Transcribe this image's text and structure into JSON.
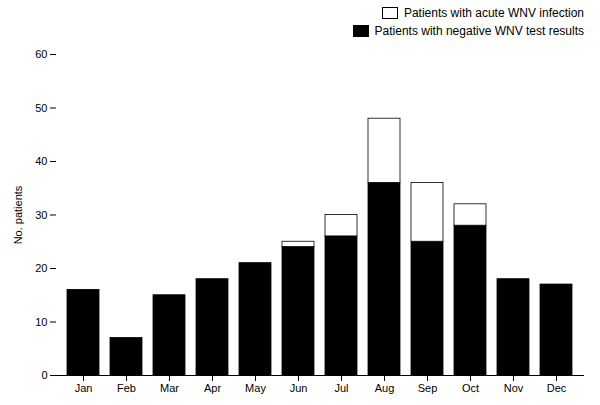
{
  "chart_data": {
    "type": "bar",
    "stacked": true,
    "categories": [
      "Jan",
      "Feb",
      "Mar",
      "Apr",
      "May",
      "Jun",
      "Jul",
      "Aug",
      "Sep",
      "Oct",
      "Nov",
      "Dec"
    ],
    "series": [
      {
        "name": "Patients with negative WNV test results",
        "color": "#000000",
        "values": [
          16,
          7,
          15,
          18,
          21,
          24,
          26,
          36,
          25,
          28,
          18,
          17
        ]
      },
      {
        "name": "Patients with acute WNV infection",
        "color": "#ffffff",
        "values": [
          0,
          0,
          0,
          0,
          0,
          1,
          4,
          12,
          11,
          4,
          0,
          0
        ]
      }
    ],
    "ylabel": "No. patients",
    "ylim": [
      0,
      60
    ],
    "yticks": [
      0,
      10,
      20,
      30,
      40,
      50,
      60
    ],
    "legend": "upper right"
  }
}
